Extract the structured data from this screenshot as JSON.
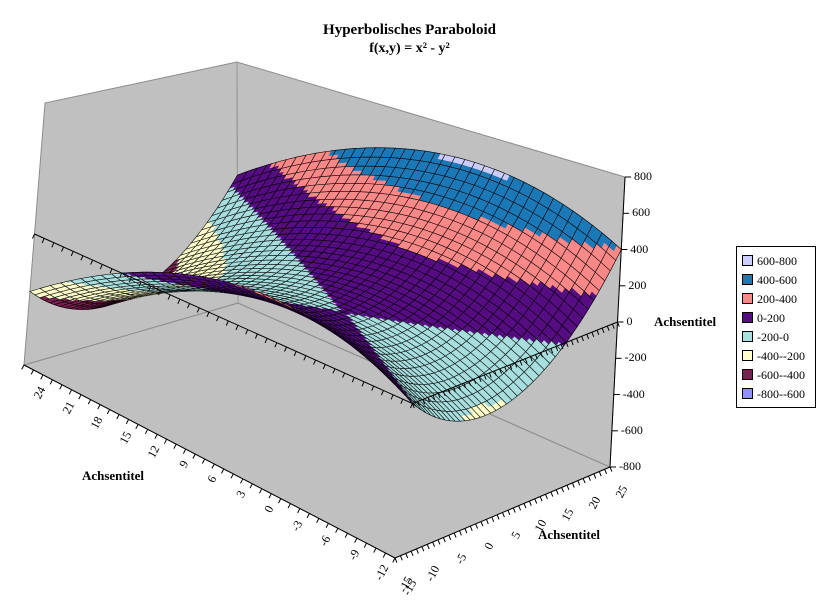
{
  "chart_data": {
    "type": "surface",
    "title": "Hyperbolisches Paraboloid",
    "subtitle": "f(x,y) = x² - y²",
    "function": "x*x - y*y",
    "x_axis": {
      "title": "Achsentitel",
      "min": -15,
      "max": 25,
      "grid_step": 1,
      "label_step": 5,
      "tick_labels": [
        "-15",
        "-10",
        "-5",
        "0",
        "5",
        "10",
        "15",
        "20",
        "25"
      ]
    },
    "y_axis": {
      "title": "Achsentitel",
      "min": -15,
      "max": 24,
      "grid_step": 1,
      "label_step": 3,
      "tick_labels": [
        "24",
        "21",
        "18",
        "15",
        "12",
        "9",
        "6",
        "3",
        "0",
        "-3",
        "-6",
        "-9",
        "-12",
        "-15"
      ]
    },
    "z_axis": {
      "title": "Achsentitel",
      "min": -800,
      "max": 800,
      "tick_step": 200,
      "tick_labels": [
        "800",
        "600",
        "400",
        "200",
        "0",
        "-200",
        "-400",
        "-600",
        "-800"
      ]
    },
    "bands": [
      {
        "label": "600-800",
        "from": 600,
        "to": 800,
        "color": "#CCCCFF"
      },
      {
        "label": "400-600",
        "from": 400,
        "to": 600,
        "color": "#1B79B8"
      },
      {
        "label": "200-400",
        "from": 200,
        "to": 400,
        "color": "#FC8888"
      },
      {
        "label": "0-200",
        "from": 0,
        "to": 200,
        "color": "#560D82"
      },
      {
        "label": "-200-0",
        "from": -200,
        "to": 0,
        "color": "#A8DEDE"
      },
      {
        "label": "-400--200",
        "from": -400,
        "to": -200,
        "color": "#FFFFCC"
      },
      {
        "label": "-600--400",
        "from": -600,
        "to": -400,
        "color": "#7C2052"
      },
      {
        "label": "-800--600",
        "from": -800,
        "to": -600,
        "color": "#9090FA"
      }
    ],
    "legend_position": "right",
    "wall_color": "#C0C0C0",
    "background_color": "#FFFFFF",
    "mesh_line_color": "#000000"
  }
}
